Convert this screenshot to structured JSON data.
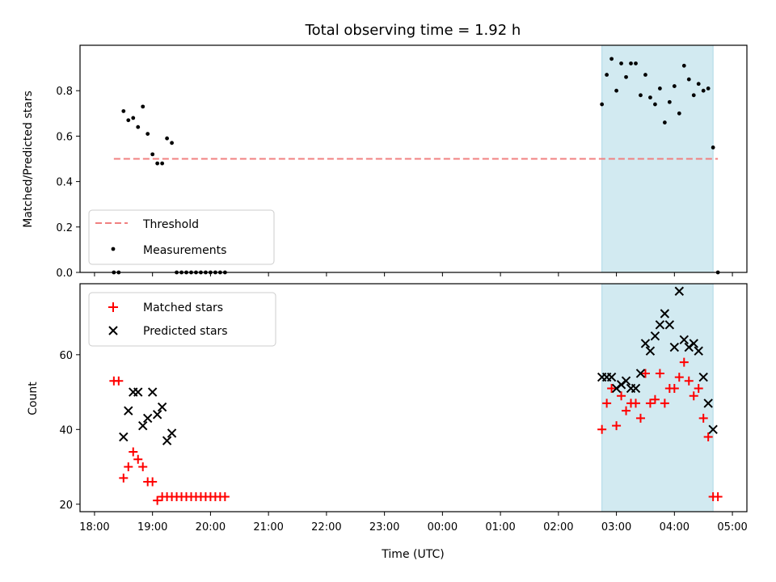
{
  "chart_data": [
    {
      "panel": "top",
      "type": "scatter",
      "title": "Total observing time = 1.92 h",
      "xlabel": "",
      "ylabel": "Matched/Predicted stars",
      "xlim": [
        "17:45",
        "05:15"
      ],
      "ylim": [
        0,
        1.0
      ],
      "yticks": [
        0.0,
        0.2,
        0.4,
        0.6,
        0.8
      ],
      "ytick_labels": [
        "0.0",
        "0.2",
        "0.4",
        "0.6",
        "0.8"
      ],
      "grid": false,
      "legend": "lower-left",
      "shaded_interval": {
        "start": "02:45",
        "end": "04:40",
        "color": "#ADD8E6"
      },
      "series": [
        {
          "name": "Threshold",
          "kind": "dashed-line",
          "color": "#F08080",
          "x": [
            "18:20",
            "04:45"
          ],
          "y": [
            0.5,
            0.5
          ]
        },
        {
          "name": "Measurements",
          "kind": "points",
          "color": "#000000",
          "x": [
            "18:20",
            "18:25",
            "18:30",
            "18:35",
            "18:40",
            "18:45",
            "18:50",
            "18:55",
            "19:00",
            "19:05",
            "19:10",
            "19:15",
            "19:20",
            "19:25",
            "19:30",
            "19:35",
            "19:40",
            "19:45",
            "19:50",
            "19:55",
            "20:00",
            "20:05",
            "20:10",
            "20:15",
            "02:45",
            "02:50",
            "02:55",
            "03:00",
            "03:05",
            "03:10",
            "03:15",
            "03:20",
            "03:25",
            "03:30",
            "03:35",
            "03:40",
            "03:45",
            "03:50",
            "03:55",
            "04:00",
            "04:05",
            "04:10",
            "04:15",
            "04:20",
            "04:25",
            "04:30",
            "04:35",
            "04:40",
            "04:45"
          ],
          "y": [
            0.0,
            0.0,
            0.71,
            0.67,
            0.68,
            0.64,
            0.73,
            0.61,
            0.52,
            0.48,
            0.48,
            0.59,
            0.57,
            0.0,
            0.0,
            0.0,
            0.0,
            0.0,
            0.0,
            0.0,
            0.0,
            0.0,
            0.0,
            0.0,
            0.74,
            0.87,
            0.94,
            0.8,
            0.92,
            0.86,
            0.92,
            0.92,
            0.78,
            0.87,
            0.77,
            0.74,
            0.81,
            0.66,
            0.75,
            0.82,
            0.7,
            0.91,
            0.85,
            0.78,
            0.83,
            0.8,
            0.81,
            0.55,
            0.0
          ]
        }
      ]
    },
    {
      "panel": "bottom",
      "type": "scatter",
      "xlabel": "Time (UTC)",
      "ylabel": "Count",
      "xlim": [
        "17:45",
        "05:15"
      ],
      "ylim": [
        18,
        79
      ],
      "xtick_labels": [
        "18:00",
        "19:00",
        "20:00",
        "21:00",
        "22:00",
        "23:00",
        "00:00",
        "01:00",
        "02:00",
        "03:00",
        "04:00",
        "05:00"
      ],
      "yticks": [
        20,
        40,
        60
      ],
      "ytick_labels": [
        "20",
        "40",
        "60"
      ],
      "grid": false,
      "legend": "upper-left",
      "shaded_interval": {
        "start": "02:45",
        "end": "04:40",
        "color": "#ADD8E6"
      },
      "series": [
        {
          "name": "Matched stars",
          "kind": "plus",
          "color": "#FF0000",
          "x": [
            "18:20",
            "18:25",
            "18:30",
            "18:35",
            "18:40",
            "18:45",
            "18:50",
            "18:55",
            "19:00",
            "19:05",
            "19:10",
            "19:15",
            "19:20",
            "19:25",
            "19:30",
            "19:35",
            "19:40",
            "19:45",
            "19:50",
            "19:55",
            "20:00",
            "20:05",
            "20:10",
            "20:15",
            "02:45",
            "02:50",
            "02:55",
            "03:00",
            "03:05",
            "03:10",
            "03:15",
            "03:20",
            "03:25",
            "03:30",
            "03:35",
            "03:40",
            "03:45",
            "03:50",
            "03:55",
            "04:00",
            "04:05",
            "04:10",
            "04:15",
            "04:20",
            "04:25",
            "04:30",
            "04:35",
            "04:40",
            "04:45"
          ],
          "y": [
            53,
            53,
            27,
            30,
            34,
            32,
            30,
            26,
            26,
            21,
            22,
            22,
            22,
            22,
            22,
            22,
            22,
            22,
            22,
            22,
            22,
            22,
            22,
            22,
            40,
            47,
            51,
            41,
            49,
            45,
            47,
            47,
            43,
            55,
            47,
            48,
            55,
            47,
            51,
            51,
            54,
            58,
            53,
            49,
            51,
            43,
            38,
            22,
            22
          ]
        },
        {
          "name": "Predicted stars",
          "kind": "cross",
          "color": "#000000",
          "x": [
            "18:30",
            "18:35",
            "18:40",
            "18:45",
            "18:50",
            "18:55",
            "19:00",
            "19:05",
            "19:10",
            "19:15",
            "19:20",
            "02:45",
            "02:50",
            "02:55",
            "03:00",
            "03:05",
            "03:10",
            "03:15",
            "03:20",
            "03:25",
            "03:30",
            "03:35",
            "03:40",
            "03:45",
            "03:50",
            "03:55",
            "04:00",
            "04:05",
            "04:10",
            "04:15",
            "04:20",
            "04:25",
            "04:30",
            "04:35",
            "04:40"
          ],
          "y": [
            38,
            45,
            50,
            50,
            41,
            43,
            50,
            44,
            46,
            37,
            39,
            54,
            54,
            54,
            51,
            52,
            53,
            51,
            51,
            55,
            63,
            61,
            65,
            68,
            71,
            68,
            62,
            77,
            64,
            62,
            63,
            61,
            54,
            47,
            40
          ]
        }
      ]
    }
  ]
}
